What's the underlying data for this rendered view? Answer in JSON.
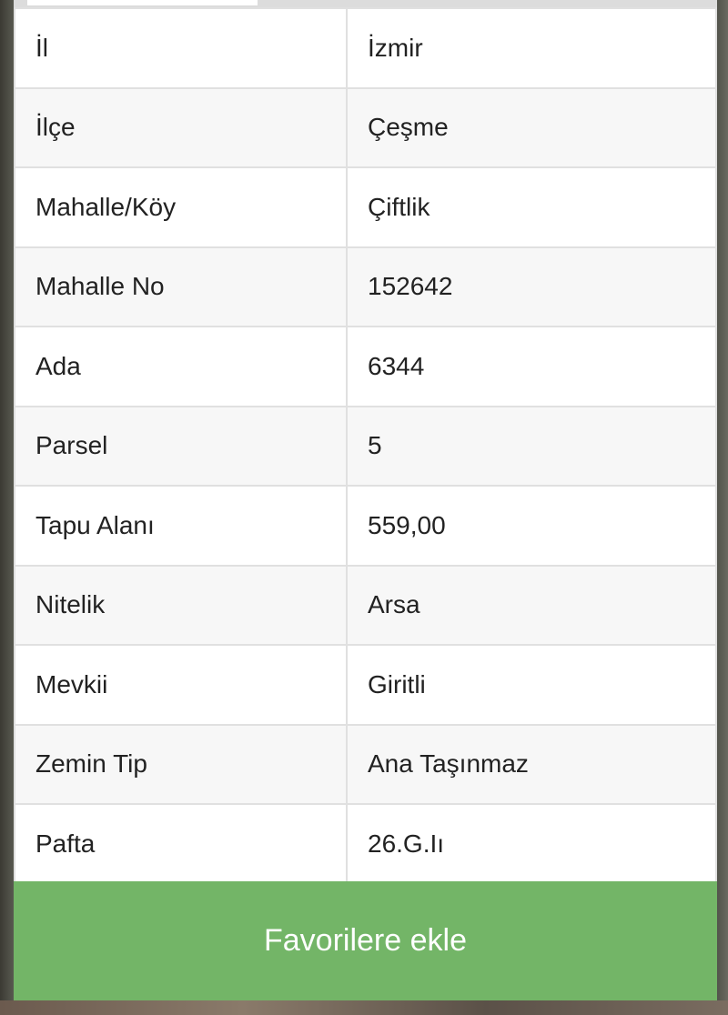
{
  "tabs": [
    {
      "label": ""
    }
  ],
  "rows": [
    {
      "key": "İl",
      "value": "İzmir"
    },
    {
      "key": "İlçe",
      "value": "Çeşme"
    },
    {
      "key": "Mahalle/Köy",
      "value": "Çiftlik"
    },
    {
      "key": "Mahalle No",
      "value": "152642"
    },
    {
      "key": "Ada",
      "value": "6344"
    },
    {
      "key": "Parsel",
      "value": "5"
    },
    {
      "key": "Tapu Alanı",
      "value": "559,00"
    },
    {
      "key": "Nitelik",
      "value": "Arsa"
    },
    {
      "key": "Mevkii",
      "value": "Giritli"
    },
    {
      "key": "Zemin Tip",
      "value": "Ana Taşınmaz"
    },
    {
      "key": "Pafta",
      "value": "26.G.Iı"
    }
  ],
  "favorite_button": {
    "label": "Favorilere ekle",
    "color": "#73b567"
  }
}
